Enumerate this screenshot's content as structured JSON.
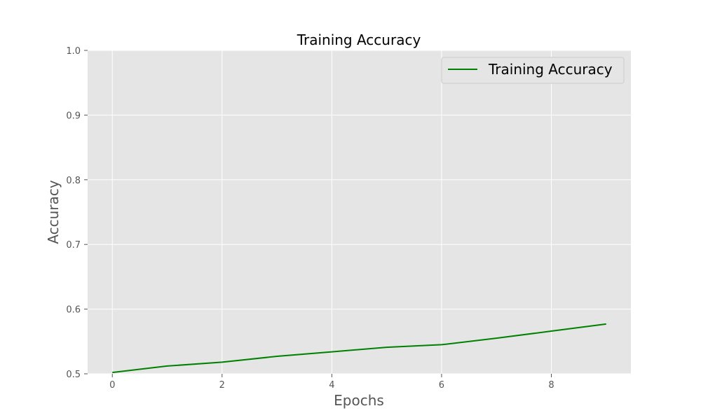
{
  "chart_data": {
    "type": "line",
    "title": "Training Accuracy",
    "xlabel": "Epochs",
    "ylabel": "Accuracy",
    "xlim": [
      -0.45,
      9.45
    ],
    "ylim": [
      0.5,
      1.0
    ],
    "x_ticks": [
      0,
      2,
      4,
      6,
      8
    ],
    "y_ticks": [
      0.5,
      0.6,
      0.7,
      0.8,
      0.9,
      1.0
    ],
    "x_tick_labels": [
      "0",
      "2",
      "4",
      "6",
      "8"
    ],
    "y_tick_labels": [
      "0.5",
      "0.6",
      "0.7",
      "0.8",
      "0.9",
      "1.0"
    ],
    "grid": true,
    "legend_position": "top-right",
    "background_color": "#e5e5e5",
    "series": [
      {
        "name": "Training Accuracy",
        "color": "#008000",
        "x": [
          0,
          1,
          2,
          3,
          4,
          5,
          6,
          7,
          8,
          9
        ],
        "y": [
          0.502,
          0.512,
          0.518,
          0.527,
          0.534,
          0.541,
          0.545,
          0.555,
          0.566,
          0.577
        ]
      }
    ]
  }
}
